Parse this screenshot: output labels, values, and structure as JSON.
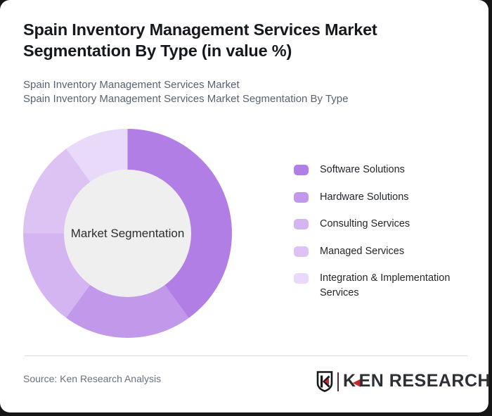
{
  "header": {
    "title": "Spain Inventory Management Services Market Segmentation By Type (in value %)",
    "subtitle_line1": "Spain Inventory Management Services Market",
    "subtitle_line2": "Spain Inventory Management Services Market Segmentation By Type"
  },
  "chart_data": {
    "type": "pie",
    "subtype": "donut",
    "title": "Spain Inventory Management Services Market Segmentation By Type (in value %)",
    "center_label": "Market Segmentation",
    "unit": "%",
    "categories": [
      "Software Solutions",
      "Hardware Solutions",
      "Consulting Services",
      "Managed Services",
      "Integration & Implementation Services"
    ],
    "values": [
      40,
      20,
      15,
      15,
      10
    ],
    "colors": [
      "#b07ee4",
      "#c299ea",
      "#d5b5f1",
      "#dcc3f4",
      "#e8daf8"
    ],
    "hole_color": "#f0eff0",
    "start_angle_deg": 0,
    "direction": "clockwise",
    "legend_position": "right",
    "data_labels": "none"
  },
  "footer": {
    "source": "Source: Ken Research Analysis",
    "logo": {
      "k": "K",
      "triangle": "◀",
      "rest": "EN RESEARCH"
    }
  }
}
